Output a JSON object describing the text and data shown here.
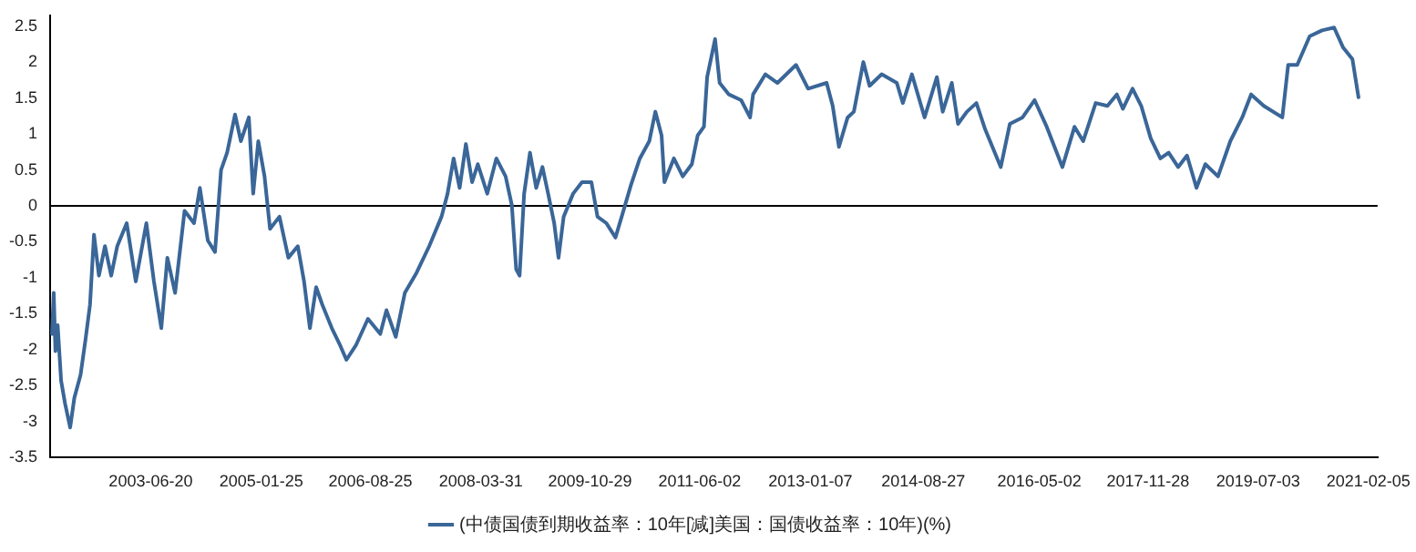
{
  "chart_data": {
    "type": "line",
    "legend": "bottom",
    "grid": false,
    "marker": "none",
    "line_style": "solid",
    "xlim": [
      "2002-01-04",
      "2021-03-26"
    ],
    "xticks": [
      "2003-06-20",
      "2005-01-25",
      "2006-08-25",
      "2008-03-31",
      "2009-10-29",
      "2011-06-02",
      "2013-01-07",
      "2014-08-27",
      "2016-05-02",
      "2017-11-28",
      "2019-07-03",
      "2021-02-05"
    ],
    "ylim": [
      -3.5,
      2.65
    ],
    "yticks": [
      -3.5,
      -3,
      -2.5,
      -2,
      -1.5,
      -1,
      -0.5,
      0,
      0.5,
      1,
      1.5,
      2,
      2.5
    ],
    "ref_lines": [
      {
        "axis": "y",
        "value": 0,
        "color": "#000000"
      }
    ],
    "x": [
      "2002-01-14",
      "2002-01-23",
      "2002-02-01",
      "2002-02-13",
      "2002-03-03",
      "2002-03-24",
      "2002-04-20",
      "2002-05-12",
      "2002-06-14",
      "2002-07-10",
      "2002-08-03",
      "2002-08-24",
      "2002-09-19",
      "2002-10-21",
      "2002-11-23",
      "2002-12-25",
      "2003-02-13",
      "2003-04-02",
      "2003-05-28",
      "2003-07-07",
      "2003-08-15",
      "2003-09-16",
      "2003-10-27",
      "2003-12-16",
      "2004-02-04",
      "2004-03-06",
      "2004-04-17",
      "2004-05-25",
      "2004-06-26",
      "2004-07-28",
      "2004-09-08",
      "2004-10-09",
      "2004-11-20",
      "2004-12-13",
      "2005-01-09",
      "2005-02-11",
      "2005-03-12",
      "2005-05-01",
      "2005-06-17",
      "2005-08-06",
      "2005-09-08",
      "2005-10-09",
      "2005-11-11",
      "2005-12-13",
      "2006-02-02",
      "2006-03-18",
      "2006-04-20",
      "2006-06-09",
      "2006-08-12",
      "2006-10-16",
      "2006-11-18",
      "2007-01-06",
      "2007-02-23",
      "2007-04-26",
      "2007-07-02",
      "2007-09-05",
      "2007-10-07",
      "2007-11-08",
      "2007-12-10",
      "2008-01-12",
      "2008-02-14",
      "2008-03-15",
      "2008-05-04",
      "2008-06-21",
      "2008-08-09",
      "2008-09-11",
      "2008-10-04",
      "2008-10-22",
      "2008-11-15",
      "2008-12-16",
      "2009-01-18",
      "2009-02-20",
      "2009-03-22",
      "2009-04-23",
      "2009-05-16",
      "2009-06-12",
      "2009-08-01",
      "2009-09-17",
      "2009-11-06",
      "2009-12-08",
      "2010-01-24",
      "2010-03-13",
      "2010-04-15",
      "2010-06-03",
      "2010-07-20",
      "2010-09-08",
      "2010-10-10",
      "2010-11-12",
      "2010-11-27",
      "2011-01-16",
      "2011-03-04",
      "2011-04-21",
      "2011-05-22",
      "2011-06-24",
      "2011-07-11",
      "2011-08-22",
      "2011-09-15",
      "2011-11-03",
      "2012-01-07",
      "2012-02-23",
      "2012-03-10",
      "2012-05-14",
      "2012-07-17",
      "2012-10-23",
      "2012-12-26",
      "2013-04-03",
      "2013-05-05",
      "2013-06-07",
      "2013-07-23",
      "2013-08-25",
      "2013-10-14",
      "2013-11-16",
      "2014-01-19",
      "2014-04-09",
      "2014-05-11",
      "2014-06-28",
      "2014-09-03",
      "2014-11-07",
      "2014-12-08",
      "2015-01-25",
      "2015-02-27",
      "2015-04-15",
      "2015-06-04",
      "2015-07-21",
      "2015-10-11",
      "2015-11-28",
      "2016-02-03",
      "2016-04-07",
      "2016-06-10",
      "2016-09-01",
      "2016-11-04",
      "2016-12-20",
      "2017-02-24",
      "2017-04-27",
      "2017-06-16",
      "2017-07-18",
      "2017-09-07",
      "2017-10-23",
      "2017-12-12",
      "2018-02-01",
      "2018-03-17",
      "2018-05-06",
      "2018-06-22",
      "2018-08-11",
      "2018-09-27",
      "2018-12-03",
      "2019-02-06",
      "2019-04-10",
      "2019-05-27",
      "2019-08-02",
      "2019-11-08",
      "2019-12-09",
      "2020-01-26",
      "2020-04-01",
      "2020-06-05",
      "2020-08-08",
      "2020-09-25",
      "2020-11-13",
      "2020-12-15"
    ],
    "series": [
      {
        "name": "(中债国债到期收益率：10年[减]美国：国债收益率：10年)(%)",
        "color": "#3a6698",
        "values": [
          -1.78,
          -1.21,
          -2.02,
          -1.66,
          -2.43,
          -2.75,
          -3.08,
          -2.67,
          -2.35,
          -1.86,
          -1.37,
          -0.4,
          -0.97,
          -0.56,
          -0.97,
          -0.56,
          -0.24,
          -1.05,
          -0.24,
          -1.05,
          -1.7,
          -0.72,
          -1.21,
          -0.07,
          -0.24,
          0.25,
          -0.48,
          -0.64,
          0.5,
          0.74,
          1.27,
          0.9,
          1.23,
          0.17,
          0.9,
          0.41,
          -0.32,
          -0.15,
          -0.72,
          -0.56,
          -1.05,
          -1.7,
          -1.13,
          -1.37,
          -1.7,
          -1.94,
          -2.14,
          -1.94,
          -1.57,
          -1.78,
          -1.45,
          -1.82,
          -1.21,
          -0.93,
          -0.56,
          -0.15,
          0.17,
          0.66,
          0.25,
          0.86,
          0.33,
          0.58,
          0.17,
          0.66,
          0.41,
          0.01,
          -0.88,
          -0.97,
          0.17,
          0.74,
          0.25,
          0.54,
          0.17,
          -0.24,
          -0.72,
          -0.15,
          0.17,
          0.33,
          0.33,
          -0.15,
          -0.24,
          -0.44,
          -0.15,
          0.29,
          0.66,
          0.9,
          1.31,
          0.98,
          0.33,
          0.66,
          0.41,
          0.58,
          0.98,
          1.1,
          1.79,
          2.32,
          1.71,
          1.55,
          1.47,
          1.23,
          1.55,
          1.83,
          1.71,
          1.96,
          1.63,
          1.71,
          1.39,
          0.82,
          1.23,
          1.31,
          2.0,
          1.67,
          1.83,
          1.71,
          1.43,
          1.83,
          1.23,
          1.79,
          1.31,
          1.71,
          1.14,
          1.31,
          1.43,
          1.06,
          0.54,
          1.14,
          1.23,
          1.47,
          1.1,
          0.54,
          1.1,
          0.9,
          1.43,
          1.39,
          1.55,
          1.35,
          1.63,
          1.39,
          0.94,
          0.66,
          0.74,
          0.54,
          0.7,
          0.25,
          0.58,
          0.41,
          0.9,
          1.23,
          1.55,
          1.39,
          1.23,
          1.96,
          1.96,
          2.36,
          2.44,
          2.48,
          2.2,
          2.04,
          1.51
        ]
      }
    ]
  }
}
